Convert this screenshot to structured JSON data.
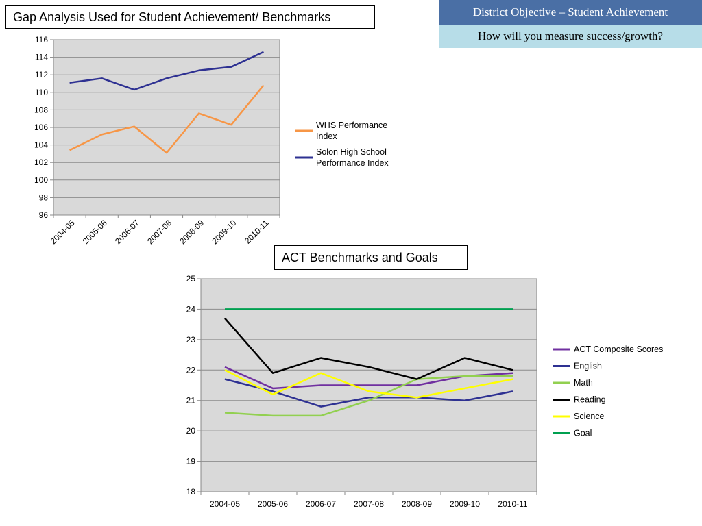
{
  "slide": {
    "objective_header": "District Objective – Student Achievement",
    "objective_question": "How will you measure success/growth?"
  },
  "chart_data": [
    {
      "type": "line",
      "title": "Gap Analysis Used for Student Achievement/ Benchmarks",
      "categories": [
        "2004-05",
        "2005-06",
        "2006-07",
        "2007-08",
        "2008-09",
        "2009-10",
        "2010-11"
      ],
      "ylim": [
        96,
        116
      ],
      "ystep": 2,
      "grid": true,
      "legend_position": "right",
      "series": [
        {
          "name": "WHS Performance Index",
          "legend_lines": [
            "WHS Performance",
            "Index"
          ],
          "color": "#f79646",
          "values": [
            103.4,
            105.2,
            106.1,
            103.1,
            107.6,
            106.3,
            110.8
          ]
        },
        {
          "name": "Solon High School Performance Index",
          "legend_lines": [
            "Solon High School",
            "Performance Index"
          ],
          "color": "#2e3192",
          "values": [
            111.1,
            111.6,
            110.3,
            111.6,
            112.5,
            112.9,
            114.6
          ]
        }
      ]
    },
    {
      "type": "line",
      "title": "ACT Benchmarks and Goals",
      "categories": [
        "2004-05",
        "2005-06",
        "2006-07",
        "2007-08",
        "2008-09",
        "2009-10",
        "2010-11"
      ],
      "ylim": [
        18,
        25
      ],
      "ystep": 1,
      "grid": true,
      "legend_position": "right",
      "series": [
        {
          "name": "ACT Composite Scores",
          "color": "#7030a0",
          "values": [
            22.1,
            21.4,
            21.5,
            21.5,
            21.5,
            21.8,
            21.9
          ]
        },
        {
          "name": "English",
          "color": "#2e3192",
          "values": [
            21.7,
            21.3,
            20.8,
            21.1,
            21.1,
            21.0,
            21.3
          ]
        },
        {
          "name": "Math",
          "color": "#92d050",
          "values": [
            20.6,
            20.5,
            20.5,
            21.0,
            21.7,
            21.8,
            21.8
          ]
        },
        {
          "name": "Reading",
          "color": "#000000",
          "values": [
            23.7,
            21.9,
            22.4,
            22.1,
            21.7,
            22.4,
            22.0
          ]
        },
        {
          "name": "Science",
          "color": "#ffff00",
          "values": [
            22.0,
            21.2,
            21.9,
            21.3,
            21.1,
            21.4,
            21.7
          ]
        },
        {
          "name": "Goal",
          "color": "#00a050",
          "values": [
            24,
            24,
            24,
            24,
            24,
            24,
            24
          ]
        }
      ]
    }
  ]
}
